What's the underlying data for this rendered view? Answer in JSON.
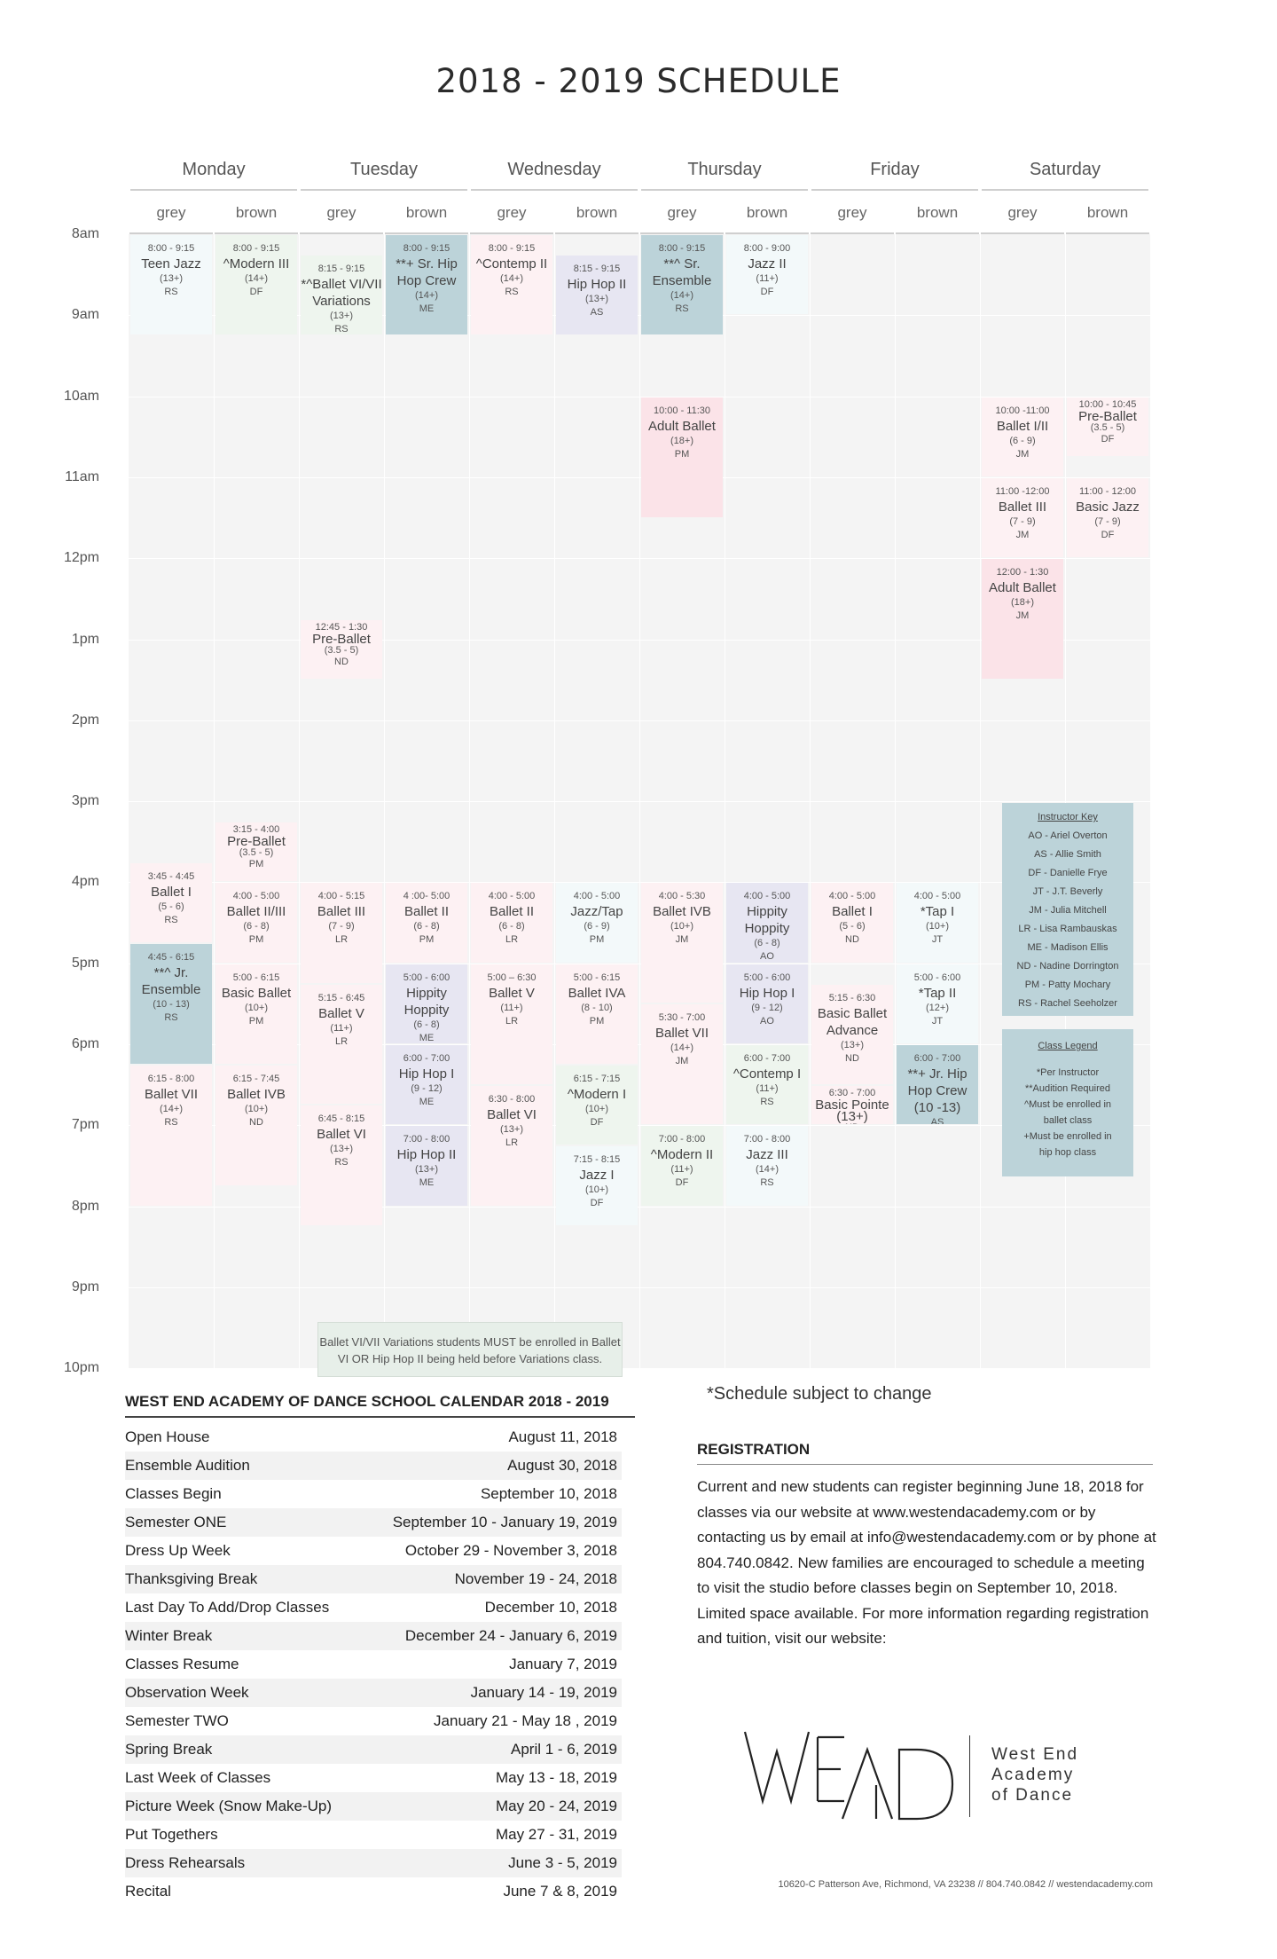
{
  "title": "2018 - 2019 SCHEDULE",
  "days": [
    "Monday",
    "Tuesday",
    "Wednesday",
    "Thursday",
    "Friday",
    "Saturday"
  ],
  "rooms": [
    "grey",
    "brown",
    "grey",
    "brown",
    "grey",
    "brown",
    "grey",
    "brown",
    "grey",
    "brown",
    "grey",
    "brown"
  ],
  "times": [
    "8am",
    "9am",
    "10am",
    "11am",
    "12pm",
    "1pm",
    "2pm",
    "3pm",
    "4pm",
    "5pm",
    "6pm",
    "7pm",
    "8pm",
    "9pm",
    "10pm"
  ],
  "classes": [
    {
      "col": 0,
      "time": "3:45 - 4:45",
      "name": "Ballet I",
      "age": "(5 - 6)",
      "instr": "RS",
      "color": "c-lpink"
    },
    {
      "col": 0,
      "time": "4:45 - 6:15",
      "name": "**^ Jr. Ensemble",
      "age": "(10 - 13)",
      "instr": "RS",
      "color": "c-teal"
    },
    {
      "col": 0,
      "time": "6:15 - 8:00",
      "name": "Ballet VII",
      "age": "(14+)",
      "instr": "RS",
      "color": "c-lpink"
    },
    {
      "col": 0,
      "time": "8:00 - 9:15",
      "name": "Teen Jazz",
      "age": "(13+)",
      "instr": "RS",
      "color": "c-vlteal"
    },
    {
      "col": 1,
      "time": "3:15 - 4:00",
      "name": "Pre-Ballet",
      "age": "(3.5 - 5)",
      "instr": "PM",
      "color": "c-lpink"
    },
    {
      "col": 1,
      "time": "4:00 - 5:00",
      "name": "Ballet II/III",
      "age": "(6 - 8)",
      "instr": "PM",
      "color": "c-lpink"
    },
    {
      "col": 1,
      "time": "5:00 - 6:15",
      "name": "Basic Ballet",
      "age": "(10+)",
      "instr": "PM",
      "color": "c-lpink"
    },
    {
      "col": 1,
      "time": "6:15 - 7:45",
      "name": "Ballet IVB",
      "age": "(10+)",
      "instr": "ND",
      "color": "c-lpink"
    },
    {
      "col": 1,
      "time": "8:00 - 9:15",
      "name": "^Modern III",
      "age": "(14+)",
      "instr": "DF",
      "color": "c-mint"
    },
    {
      "col": 2,
      "time": "12:45 - 1:30",
      "name": "Pre-Ballet",
      "age": "(3.5 - 5)",
      "instr": "ND",
      "color": "c-lpink"
    },
    {
      "col": 2,
      "time": "4:00 - 5:15",
      "name": "Ballet III",
      "age": "(7 - 9)",
      "instr": "LR",
      "color": "c-lpink"
    },
    {
      "col": 2,
      "time": "5:15 - 6:45",
      "name": "Ballet V",
      "age": "(11+)",
      "instr": "LR",
      "color": "c-lpink"
    },
    {
      "col": 2,
      "time": "6:45 - 8:15",
      "name": "Ballet VI",
      "age": "(13+)",
      "instr": "RS",
      "color": "c-lpink"
    },
    {
      "col": 2,
      "time": "8:15 - 9:15",
      "name": "*^Ballet VI/VII Variations",
      "age": "(13+)",
      "instr": "RS",
      "color": "c-mint"
    },
    {
      "col": 3,
      "time": "4 :00- 5:00",
      "name": "Ballet II",
      "age": "(6 - 8)",
      "instr": "PM",
      "color": "c-lpink"
    },
    {
      "col": 3,
      "time": "5:00 - 6:00",
      "name": "Hippity Hoppity",
      "age": "(6 - 8)",
      "instr": "ME",
      "color": "c-lav"
    },
    {
      "col": 3,
      "time": "6:00 - 7:00",
      "name": "Hip Hop I",
      "age": "(9 - 12)",
      "instr": "ME",
      "color": "c-lav"
    },
    {
      "col": 3,
      "time": "7:00 - 8:00",
      "name": "Hip Hop II",
      "age": "(13+)",
      "instr": "ME",
      "color": "c-lav"
    },
    {
      "col": 3,
      "time": "8:00 - 9:15",
      "name": "**+ Sr. Hip Hop Crew",
      "age": "(14+)",
      "instr": "ME",
      "color": "c-teal"
    },
    {
      "col": 4,
      "time": "4:00 - 5:00",
      "name": "Ballet II",
      "age": "(6 - 8)",
      "instr": "LR",
      "color": "c-lpink"
    },
    {
      "col": 4,
      "time": "5:00 – 6:30",
      "name": "Ballet V",
      "age": "(11+)",
      "instr": "LR",
      "color": "c-lpink"
    },
    {
      "col": 4,
      "time": "6:30 - 8:00",
      "name": "Ballet VI",
      "age": "(13+)",
      "instr": "LR",
      "color": "c-lpink"
    },
    {
      "col": 4,
      "time": "8:00 - 9:15",
      "name": "^Contemp II",
      "age": "(14+)",
      "instr": "RS",
      "color": "c-lpink"
    },
    {
      "col": 5,
      "time": "4:00 - 5:00",
      "name": "Jazz/Tap",
      "age": "(6 - 9)",
      "instr": "PM",
      "color": "c-vlteal"
    },
    {
      "col": 5,
      "time": "5:00 - 6:15",
      "name": "Ballet IVA",
      "age": "(8 - 10)",
      "instr": "PM",
      "color": "c-lpink"
    },
    {
      "col": 5,
      "time": "6:15 - 7:15",
      "name": "^Modern I",
      "age": "(10+)",
      "instr": "DF",
      "color": "c-mint"
    },
    {
      "col": 5,
      "time": "7:15 - 8:15",
      "name": "Jazz I",
      "age": "(10+)",
      "instr": "DF",
      "color": "c-vlteal"
    },
    {
      "col": 5,
      "time": "8:15 - 9:15",
      "name": "Hip Hop II",
      "age": "(13+)",
      "instr": "AS",
      "color": "c-lav"
    },
    {
      "col": 6,
      "time": "10:00 - 11:30",
      "name": "Adult Ballet",
      "age": "(18+)",
      "instr": "PM",
      "color": "c-blush"
    },
    {
      "col": 6,
      "time": "4:00 - 5:30",
      "name": "Ballet IVB",
      "age": "(10+)",
      "instr": "JM",
      "color": "c-lpink"
    },
    {
      "col": 6,
      "time": "5:30 - 7:00",
      "name": "Ballet VII",
      "age": "(14+)",
      "instr": "JM",
      "color": "c-lpink"
    },
    {
      "col": 6,
      "time": "7:00 - 8:00",
      "name": "^Modern II",
      "age": "(11+)",
      "instr": "DF",
      "color": "c-mint"
    },
    {
      "col": 6,
      "time": "8:00 - 9:15",
      "name": "**^ Sr. Ensemble",
      "age": "(14+)",
      "instr": "RS",
      "color": "c-teal"
    },
    {
      "col": 7,
      "time": "4:00 - 5:00",
      "name": "Hippity Hoppity",
      "age": "(6 - 8)",
      "instr": "AO",
      "color": "c-lav"
    },
    {
      "col": 7,
      "time": "5:00 - 6:00",
      "name": "Hip Hop I",
      "age": "(9 - 12)",
      "instr": "AO",
      "color": "c-lav"
    },
    {
      "col": 7,
      "time": "6:00 - 7:00",
      "name": "^Contemp I",
      "age": "(11+)",
      "instr": "RS",
      "color": "c-mint"
    },
    {
      "col": 7,
      "time": "7:00 - 8:00",
      "name": "Jazz III",
      "age": "(14+)",
      "instr": "RS",
      "color": "c-vlteal"
    },
    {
      "col": 7,
      "time": "8:00 - 9:00",
      "name": "Jazz II",
      "age": "(11+)",
      "instr": "DF",
      "color": "c-vlteal"
    },
    {
      "col": 8,
      "time": "4:00 - 5:00",
      "name": "Ballet I",
      "age": "(5 - 6)",
      "instr": "ND",
      "color": "c-lpink"
    },
    {
      "col": 8,
      "time": "5:15 - 6:30",
      "name": "Basic Ballet Advance",
      "age": "(13+)",
      "instr": "ND",
      "color": "c-lpink"
    },
    {
      "col": 8,
      "time": "6:30 - 7:00",
      "name": "Basic Pointe (13+)",
      "age": "",
      "instr": "ND",
      "color": "c-lpink"
    },
    {
      "col": 9,
      "time": "4:00 - 5:00",
      "name": "*Tap I",
      "age": "(10+)",
      "instr": "JT",
      "color": "c-vlteal"
    },
    {
      "col": 9,
      "time": "5:00 - 6:00",
      "name": "*Tap II",
      "age": "(12+)",
      "instr": "JT",
      "color": "c-vlteal"
    },
    {
      "col": 9,
      "time": "6:00 - 7:00",
      "name": "**+ Jr. Hip Hop Crew (10 -13)",
      "age": "",
      "instr": "AS",
      "color": "c-teal"
    },
    {
      "col": 10,
      "time": "10:00 -11:00",
      "name": "Ballet I/II",
      "age": "(6 - 9)",
      "instr": "JM",
      "color": "c-lpink"
    },
    {
      "col": 10,
      "time": "11:00 -12:00",
      "name": "Ballet III",
      "age": "(7 - 9)",
      "instr": "JM",
      "color": "c-lpink"
    },
    {
      "col": 10,
      "time": "12:00 - 1:30",
      "name": "Adult Ballet",
      "age": "(18+)",
      "instr": "JM",
      "color": "c-blush"
    },
    {
      "col": 11,
      "time": "10:00 - 10:45",
      "name": "Pre-Ballet",
      "age": "(3.5 - 5)",
      "instr": "DF",
      "color": "c-lpink"
    },
    {
      "col": 11,
      "time": "11:00 - 12:00",
      "name": "Basic Jazz",
      "age": "(7 - 9)",
      "instr": "DF",
      "color": "c-lpink"
    }
  ],
  "instructor_key": {
    "heading": "Instructor Key",
    "items": [
      "AO - Ariel Overton",
      "AS - Allie Smith",
      "DF - Danielle Frye",
      "JT - J.T. Beverly",
      "JM - Julia Mitchell",
      "LR - Lisa Rambauskas",
      "ME - Madison Ellis",
      "ND - Nadine Dorrington",
      "PM - Patty Mochary",
      "RS - Rachel Seeholzer"
    ]
  },
  "class_legend": {
    "heading": "Class Legend",
    "items": [
      "*Per Instructor",
      "**Audition Required",
      "^Must be enrolled in",
      "ballet class",
      "+Must be enrolled in",
      "hip hop class"
    ]
  },
  "variations_note": "Ballet VI/VII Variations students MUST be enrolled in Ballet VI OR Hip Hop II being held before Variations class.",
  "subject_note": "*Schedule subject to change",
  "calendar": {
    "heading": "WEST END ACADEMY OF DANCE SCHOOL CALENDAR 2018 - 2019",
    "rows": [
      {
        "event": "Open House",
        "date": "August 11, 2018"
      },
      {
        "event": "Ensemble Audition",
        "date": "August 30, 2018"
      },
      {
        "event": "Classes Begin",
        "date": "September 10, 2018"
      },
      {
        "event": "Semester ONE",
        "date": "September 10 - January 19, 2019"
      },
      {
        "event": "Dress Up Week",
        "date": "October 29 - November 3, 2018"
      },
      {
        "event": "Thanksgiving Break",
        "date": "November 19 - 24, 2018"
      },
      {
        "event": "Last Day To Add/Drop Classes",
        "date": "December 10, 2018"
      },
      {
        "event": "Winter Break",
        "date": "December 24 - January 6, 2019"
      },
      {
        "event": "Classes Resume",
        "date": "January 7, 2019"
      },
      {
        "event": "Observation Week",
        "date": "January 14 - 19, 2019"
      },
      {
        "event": "Semester TWO",
        "date": "January 21 - May 18 , 2019"
      },
      {
        "event": "Spring Break",
        "date": "April 1 - 6, 2019"
      },
      {
        "event": "Last Week of Classes",
        "date": "May 13 - 18, 2019"
      },
      {
        "event": "Picture Week (Snow Make-Up)",
        "date": "May 20 - 24, 2019"
      },
      {
        "event": "Put Togethers",
        "date": "May 27 - 31, 2019"
      },
      {
        "event": "Dress Rehearsals",
        "date": "June 3 - 5, 2019"
      },
      {
        "event": "Recital",
        "date": "June 7 & 8, 2019"
      }
    ]
  },
  "registration": {
    "heading": "REGISTRATION",
    "text": "Current and new students can register beginning June 18, 2018 for classes via our website at www.westendacademy.com or by contacting us by email at info@westendacademy.com or by phone at 804.740.0842. New families are encouraged to schedule a meeting to visit the studio before classes begin on September 10, 2018. Limited space available. For more information regarding registration and tuition, visit our website:"
  },
  "logo": {
    "mark": "WEAD",
    "name_lines": [
      "West End",
      "Academy",
      "of Dance"
    ]
  },
  "footer": "10620-C Patterson Ave, Richmond, VA 23238  //  804.740.0842  //  westendacademy.com"
}
